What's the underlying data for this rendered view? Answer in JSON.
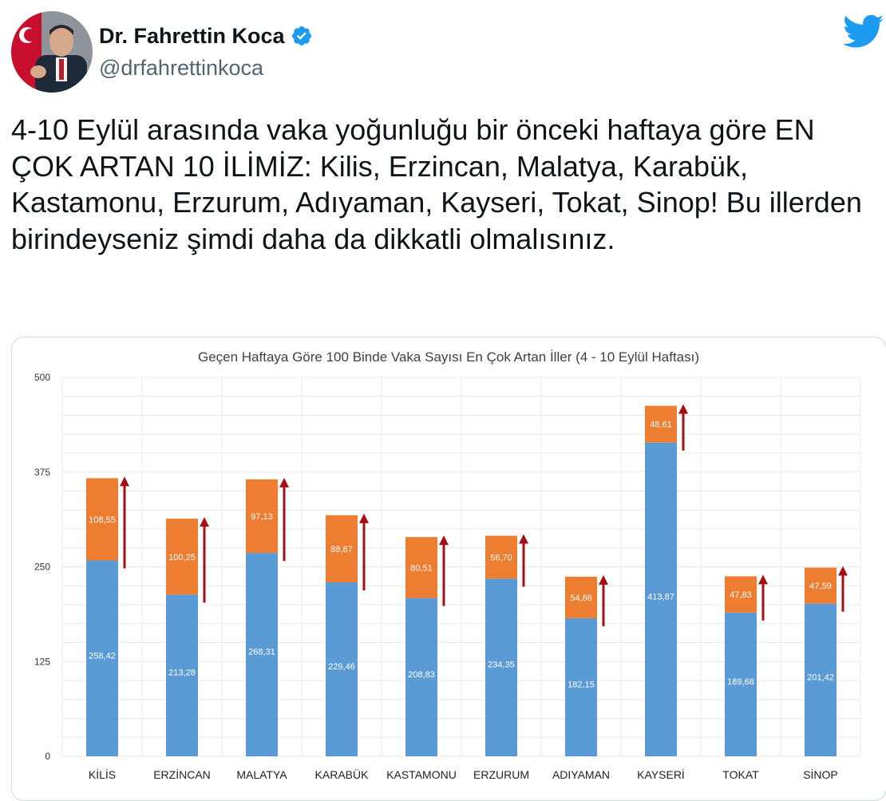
{
  "tweet": {
    "author_name": "Dr. Fahrettin Koca",
    "handle": "@drfahrettinkoca",
    "verified": true,
    "text": "4-10 Eylül arasında vaka yoğunluğu bir önceki haftaya göre EN ÇOK ARTAN 10 İLİMİZ: Kilis, Erzincan, Malatya, Karabük, Kastamonu, Erzurum, Adıyaman, Kayseri, Tokat, Sinop! Bu illerden birindeyseniz şimdi daha da dikkatli olmalısınız.",
    "icons": {
      "verified": "verified-badge-icon",
      "platform": "twitter-bird-icon"
    },
    "colors": {
      "brand": "#1d9bf0",
      "handle": "#536471"
    }
  },
  "chart_data": {
    "type": "bar",
    "stacked": true,
    "title": "Geçen Haftaya Göre 100 Binde Vaka Sayısı En Çok Artan İller (4 - 10 Eylül Haftası)",
    "categories": [
      "KİLİS",
      "ERZİNCAN",
      "MALATYA",
      "KARABÜK",
      "KASTAMONU",
      "ERZURUM",
      "ADIYAMAN",
      "KAYSERİ",
      "TOKAT",
      "SİNOP"
    ],
    "series": [
      {
        "values": [
          258.42,
          213.28,
          268.31,
          229.46,
          208.83,
          234.35,
          182.15,
          413.87,
          189.68,
          201.42
        ],
        "labels": [
          "258,42",
          "213,28",
          "268,31",
          "229,46",
          "208,83",
          "234,35",
          "182,15",
          "413,87",
          "189,68",
          "201,42"
        ],
        "color": "#5b9bd5"
      },
      {
        "values": [
          108.55,
          100.25,
          97.13,
          88.67,
          80.51,
          56.7,
          54.86,
          48.61,
          47.83,
          47.59
        ],
        "labels": [
          "108,55",
          "100,25",
          "97,13",
          "88,67",
          "80,51",
          "56,70",
          "54,86",
          "48,61",
          "47,83",
          "47,59"
        ],
        "color": "#ed7d31"
      }
    ],
    "ylim": [
      0,
      500
    ],
    "yticks": [
      "0",
      "125",
      "250",
      "375",
      "500"
    ],
    "grid": true,
    "arrow_color": "#a50f15"
  }
}
